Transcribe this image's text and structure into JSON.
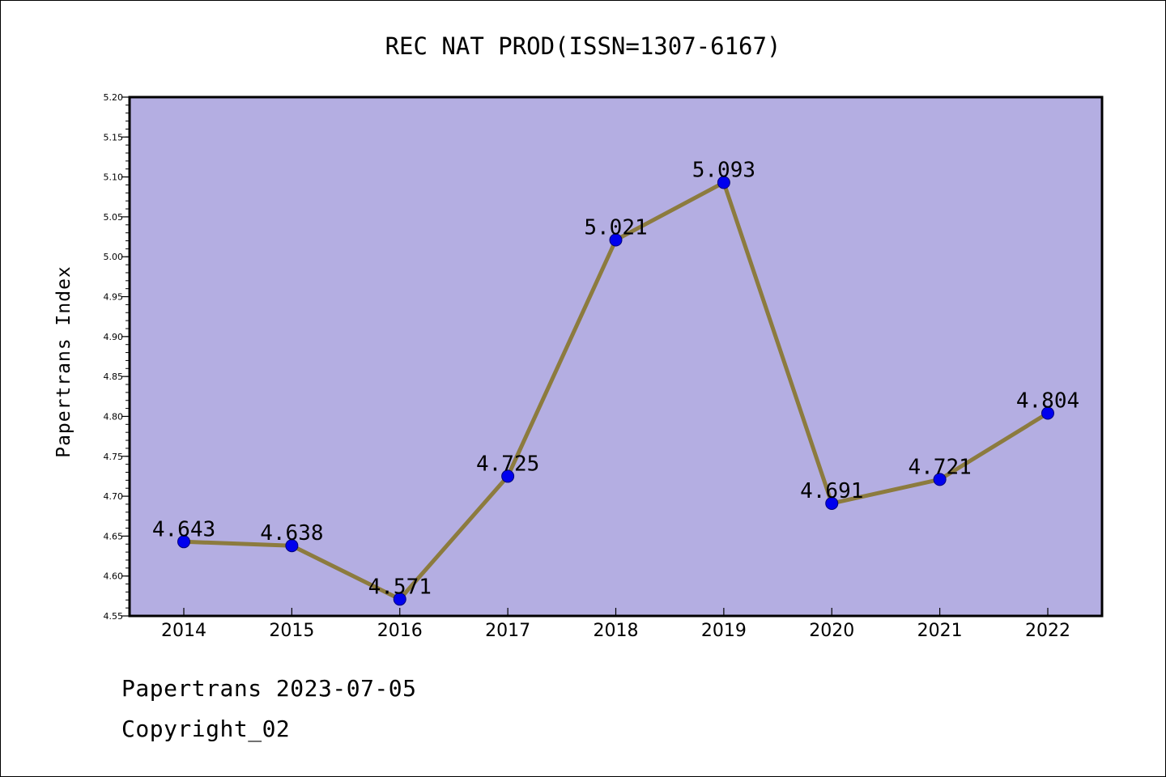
{
  "chart_data": {
    "type": "line",
    "title": "REC NAT PROD(ISSN=1307-6167)",
    "xlabel": "",
    "ylabel": "Papertrans Index",
    "categories": [
      "2014",
      "2015",
      "2016",
      "2017",
      "2018",
      "2019",
      "2020",
      "2021",
      "2022"
    ],
    "values": [
      4.643,
      4.638,
      4.571,
      4.725,
      5.021,
      5.093,
      4.691,
      4.721,
      4.804
    ],
    "data_labels": [
      "4.643",
      "4.638",
      "4.571",
      "4.725",
      "5.021",
      "5.093",
      "4.691",
      "4.721",
      "4.804"
    ],
    "ylim": [
      4.55,
      5.2
    ],
    "yticks": [
      "4.55",
      "4.60",
      "4.65",
      "4.70",
      "4.75",
      "4.80",
      "4.85",
      "4.90",
      "4.95",
      "5.00",
      "5.05",
      "5.10",
      "5.15",
      "5.20"
    ],
    "grid": false,
    "legend": "none",
    "colors": {
      "plot_background": "#b4aee2",
      "line": "#8c7b3e",
      "marker": "#0000ee",
      "marker_edge": "#00007a",
      "axis": "#000000"
    }
  },
  "footer": {
    "line1": "Papertrans 2023-07-05",
    "line2": "Copyright_02"
  }
}
